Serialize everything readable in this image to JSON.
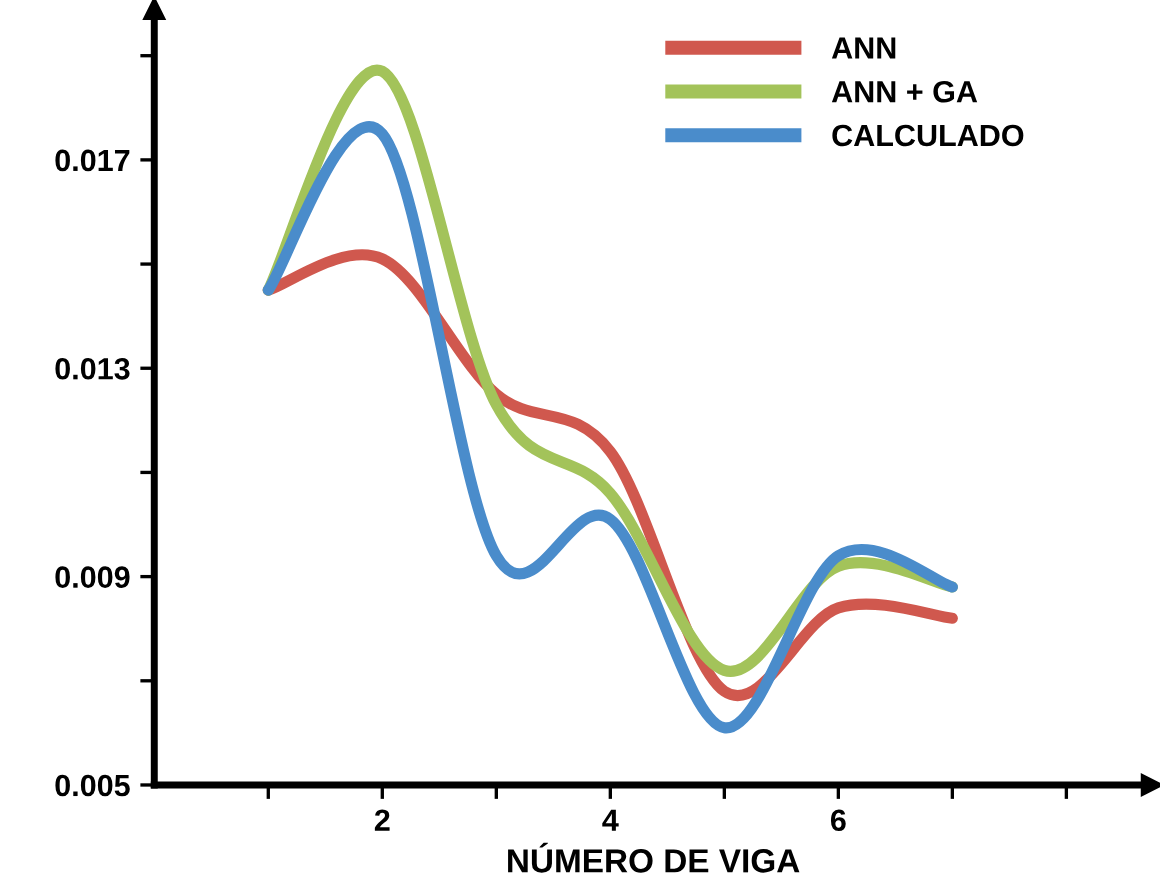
{
  "chart_data": {
    "type": "line",
    "xlabel": "NÚMERO DE VIGA",
    "x": [
      1,
      2,
      3,
      4,
      5,
      6,
      7
    ],
    "series": [
      {
        "name": "ANN",
        "color": "#d0584e",
        "values": [
          0.0145,
          0.0151,
          0.0125,
          0.0114,
          0.0068,
          0.0084,
          0.0082
        ]
      },
      {
        "name": "ANN + GA",
        "color": "#a3c35a",
        "values": [
          0.0145,
          0.0187,
          0.0123,
          0.0106,
          0.0072,
          0.0092,
          0.0088
        ]
      },
      {
        "name": "CALCULADO",
        "color": "#4a8ccb",
        "values": [
          0.0145,
          0.0175,
          0.0094,
          0.0101,
          0.0061,
          0.0094,
          0.0088
        ]
      }
    ],
    "xlim": [
      0,
      8.75
    ],
    "xticks": [
      {
        "value": 1,
        "label": null
      },
      2,
      {
        "value": 3,
        "label": null
      },
      4,
      {
        "value": 5,
        "label": null
      },
      6,
      {
        "value": 7,
        "label": null
      },
      {
        "value": 8,
        "label": null
      }
    ],
    "ylim": [
      0.005,
      0.0199
    ],
    "yticks": [
      0.005,
      {
        "value": 0.007,
        "label": null
      },
      0.009,
      {
        "value": 0.011,
        "label": null
      },
      0.013,
      {
        "value": 0.015,
        "label": null
      },
      0.017,
      {
        "value": 0.019,
        "label": null
      }
    ],
    "grid": false,
    "legend": "top right",
    "marker": "none",
    "line_style": "solid"
  }
}
